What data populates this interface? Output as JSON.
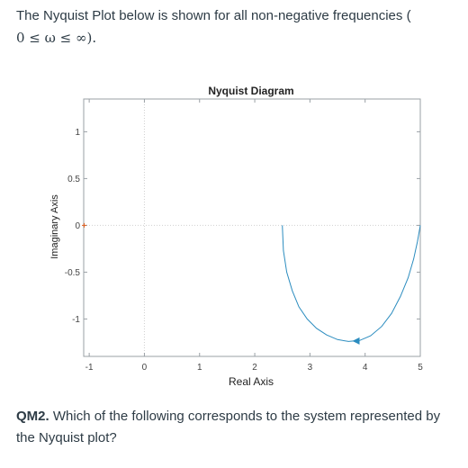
{
  "intro": {
    "text": "The Nyquist Plot below is shown for all non-negative frequencies (",
    "math": "0 ≤ ω ≤ ∞)."
  },
  "question": {
    "label": "QM2.",
    "text": " Which of the following corresponds to the system represented by the Nyquist plot?"
  },
  "chart_data": {
    "type": "line",
    "title": "Nyquist Diagram",
    "xlabel": "Real Axis",
    "ylabel": "Imaginary Axis",
    "xlim": [
      -1.1,
      5
    ],
    "ylim": [
      -1.4,
      1.35
    ],
    "x_ticks": [
      -1,
      0,
      1,
      2,
      3,
      4,
      5
    ],
    "x_tick_labels": [
      "-1",
      "0",
      "1",
      "2",
      "3",
      "4",
      "5"
    ],
    "y_ticks": [
      1,
      0.5,
      0,
      -0.5,
      -1
    ],
    "y_tick_labels": [
      "1",
      "0.5",
      "0",
      "-0.5",
      "-1"
    ],
    "grid": false,
    "series": [
      {
        "color": "#2b8cbf",
        "x": [
          2.5,
          2.52,
          2.58,
          2.68,
          2.8,
          2.95,
          3.12,
          3.3,
          3.5,
          3.7,
          3.9,
          4.1,
          4.3,
          4.48,
          4.64,
          4.78,
          4.88,
          4.95,
          5.0
        ],
        "y": [
          0,
          -0.27,
          -0.5,
          -0.7,
          -0.87,
          -1.0,
          -1.1,
          -1.17,
          -1.22,
          -1.24,
          -1.23,
          -1.18,
          -1.08,
          -0.94,
          -0.76,
          -0.56,
          -0.36,
          -0.17,
          0
        ],
        "arrow_at": [
          3.85,
          -1.235
        ]
      }
    ],
    "axis_color": "#9aa0a6",
    "crosshair_color": "#d0d0d0",
    "zero_marker_color": "#e06020"
  }
}
